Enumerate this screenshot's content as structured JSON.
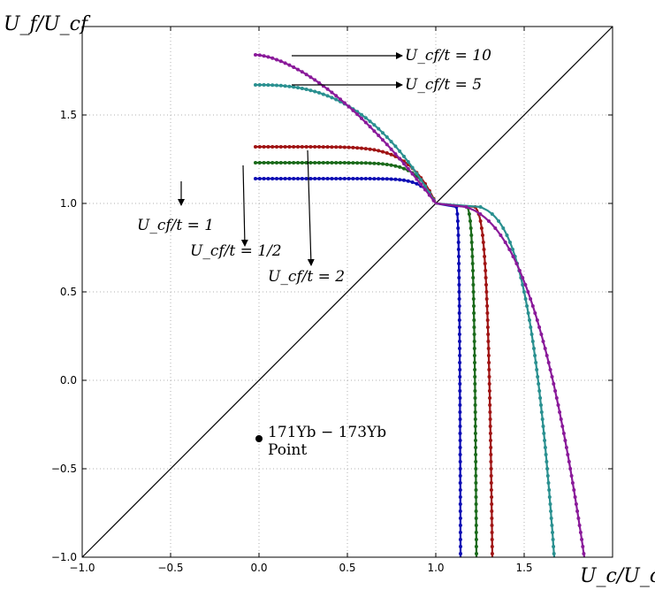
{
  "chart_data": {
    "type": "scatter",
    "xlabel": "U_c/U_cf",
    "ylabel": "U_f/U_cf",
    "xlim": [
      -1.0,
      1.85
    ],
    "ylim": [
      -1.0,
      2.0
    ],
    "x_ticks": [
      "−1.0",
      "−0.5",
      "0.0",
      "0.5",
      "1.0",
      "1.5"
    ],
    "y_ticks": [
      "−1.0",
      "−0.5",
      "0.0",
      "0.5",
      "1.0",
      "1.5"
    ],
    "grid": true,
    "series": [
      {
        "name": "U_cf/t = 1",
        "color": "#0b0bb4",
        "plateau": 1.14,
        "sharp": 14
      },
      {
        "name": "U_cf/t = 1/2",
        "color": "#1a6a1a",
        "plateau": 1.23,
        "sharp": 10
      },
      {
        "name": "U_cf/t = 2",
        "color": "#a01414",
        "plateau": 1.32,
        "sharp": 7
      },
      {
        "name": "U_cf/t = 5",
        "color": "#2a9090",
        "plateau": 1.67,
        "sharp": 2.6
      },
      {
        "name": "U_cf/t = 10",
        "color": "#8a1a9a",
        "plateau": 1.84,
        "sharp": 1.6
      }
    ],
    "diagonal": {
      "from": [
        -1.0,
        -1.0
      ],
      "to": [
        2.0,
        2.0
      ]
    },
    "point": {
      "x": 0.0,
      "y": -0.33,
      "label_line1": "171Yb − 173Yb",
      "label_line2": "Point"
    },
    "annotations": [
      {
        "text": "U_cf/t = 10"
      },
      {
        "text": "U_cf/t = 5"
      },
      {
        "text": "U_cf/t = 1"
      },
      {
        "text": "U_cf/t = 1/2"
      },
      {
        "text": "U_cf/t = 2"
      }
    ]
  }
}
